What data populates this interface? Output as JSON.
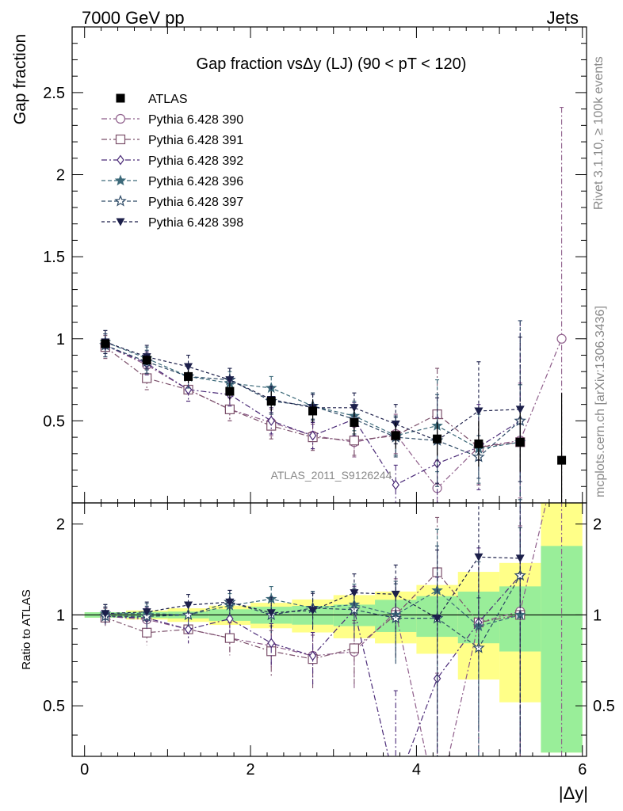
{
  "header": {
    "energy_label": "7000 GeV pp",
    "process_label": "Jets",
    "side_right_top": "Rivet 3.1.10, ≥ 100k events",
    "side_right_bottom": "mcplots.cern.ch [arXiv:1306.3436]"
  },
  "chart_data": {
    "type": "line",
    "title": "Gap fraction vsΔy (LJ) (90 < pT < 120)",
    "watermark": "ATLAS_2011_S9126244",
    "xlabel": "|Δy|",
    "ylabel": "Gap fraction",
    "ratio_ylabel": "Ratio to ATLAS",
    "xlim": [
      -0.15,
      6.05
    ],
    "ylim": [
      0,
      2.9
    ],
    "ratio_ylim": [
      0.34,
      2.35
    ],
    "ratio_scale": "log",
    "x_ticks": [
      "0",
      "2",
      "4",
      "6"
    ],
    "y_ticks": [
      "0.5",
      "1",
      "1.5",
      "2",
      "2.5"
    ],
    "ratio_ticks": [
      "0.5",
      "1",
      "2"
    ],
    "legend_position": "top-left",
    "bins": [
      [
        0,
        0.5
      ],
      [
        0.5,
        1
      ],
      [
        1,
        1.5
      ],
      [
        1.5,
        2
      ],
      [
        2,
        2.5
      ],
      [
        2.5,
        3
      ],
      [
        3,
        3.5
      ],
      [
        3.5,
        4
      ],
      [
        4,
        4.5
      ],
      [
        4.5,
        5
      ],
      [
        5,
        5.5
      ],
      [
        5.5,
        6
      ]
    ],
    "x": [
      0.25,
      0.75,
      1.25,
      1.75,
      2.25,
      2.75,
      3.25,
      3.75,
      4.25,
      4.75,
      5.25,
      5.75
    ],
    "data": {
      "name": "ATLAS",
      "values": [
        0.97,
        0.87,
        0.77,
        0.68,
        0.62,
        0.56,
        0.49,
        0.41,
        0.39,
        0.36,
        0.37,
        0.26
      ],
      "band_stat": [
        0.02,
        0.02,
        0.02,
        0.03,
        0.04,
        0.04,
        0.04,
        0.05,
        0.06,
        0.07,
        0.09,
        0.18
      ],
      "band_total": [
        0.02,
        0.03,
        0.04,
        0.05,
        0.06,
        0.07,
        0.08,
        0.08,
        0.1,
        0.14,
        0.18,
        0.41
      ]
    },
    "series": [
      {
        "name": "Pythia 6.428 390",
        "color": "#8e5d8a",
        "marker": "circle-open",
        "dash": "7,3,2,3",
        "values": [
          0.96,
          0.84,
          0.69,
          0.57,
          0.49,
          0.41,
          0.37,
          0.42,
          0.09,
          0.34,
          0.38,
          1.0
        ],
        "errors": [
          0.07,
          0.07,
          0.07,
          0.07,
          0.08,
          0.08,
          0.09,
          0.12,
          0.16,
          0.23,
          0.35,
          1.41
        ]
      },
      {
        "name": "Pythia 6.428 391",
        "color": "#7b4f6a",
        "marker": "square-open",
        "dash": "7,3,2,3",
        "values": [
          0.95,
          0.76,
          0.69,
          0.57,
          0.47,
          0.4,
          0.38,
          0.41,
          0.54,
          0.34,
          0.37,
          null
        ],
        "errors": [
          0.07,
          0.07,
          0.07,
          0.07,
          0.08,
          0.08,
          0.09,
          0.12,
          0.28,
          0.23,
          0.35,
          null
        ]
      },
      {
        "name": "Pythia 6.428 392",
        "color": "#4b2b78",
        "marker": "diamond-open",
        "dash": "7,3,2,3",
        "values": [
          0.96,
          0.85,
          0.69,
          0.66,
          0.5,
          0.41,
          0.51,
          0.11,
          0.24,
          0.34,
          0.5,
          null
        ],
        "errors": [
          0.07,
          0.07,
          0.07,
          0.07,
          0.08,
          0.08,
          0.1,
          0.12,
          0.28,
          0.26,
          0.61,
          null
        ]
      },
      {
        "name": "Pythia 6.428 396",
        "color": "#3d6a7a",
        "marker": "star-filled",
        "dash": "5,3",
        "values": [
          0.98,
          0.88,
          0.77,
          0.73,
          0.7,
          0.59,
          0.53,
          0.41,
          0.47,
          0.33,
          0.37,
          null
        ],
        "errors": [
          0.07,
          0.07,
          0.07,
          0.07,
          0.07,
          0.08,
          0.09,
          0.12,
          0.28,
          0.21,
          0.35,
          null
        ]
      },
      {
        "name": "Pythia 6.428 397",
        "color": "#2d4a66",
        "marker": "star-open",
        "dash": "5,3",
        "values": [
          0.96,
          0.86,
          0.77,
          0.75,
          0.62,
          0.59,
          0.51,
          0.4,
          0.38,
          0.28,
          0.5,
          null
        ],
        "errors": [
          0.07,
          0.07,
          0.07,
          0.07,
          0.08,
          0.08,
          0.09,
          0.12,
          0.28,
          0.13,
          0.61,
          null
        ]
      },
      {
        "name": "Pythia 6.428 398",
        "color": "#1c1f4a",
        "marker": "triangle-down-filled",
        "dash": "4,3",
        "values": [
          0.98,
          0.89,
          0.83,
          0.75,
          0.63,
          0.58,
          0.58,
          0.48,
          0.38,
          0.56,
          0.57,
          null
        ],
        "errors": [
          0.07,
          0.07,
          0.07,
          0.07,
          0.08,
          0.08,
          0.09,
          0.12,
          0.26,
          0.3,
          0.44,
          null
        ]
      }
    ]
  }
}
